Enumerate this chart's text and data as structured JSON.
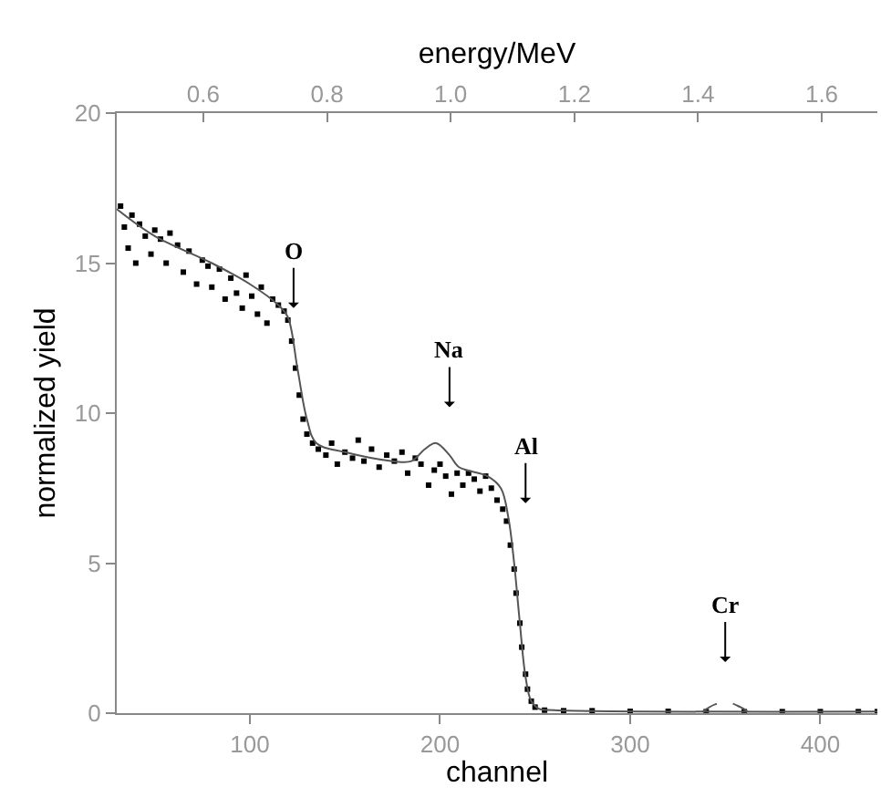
{
  "chart_data": {
    "type": "scatter",
    "xlabel": "channel",
    "ylabel": "normalized yield",
    "x2label": "energy/MeV",
    "xlim": [
      30,
      430
    ],
    "xticks": [
      100,
      200,
      300,
      400
    ],
    "ylim": [
      0,
      20
    ],
    "yticks": [
      0,
      5,
      10,
      15,
      20
    ],
    "x2lim": [
      0.46,
      1.69
    ],
    "x2ticks": [
      0.6,
      0.8,
      {
        "value": 1.0,
        "label": "1.0"
      },
      1.2,
      1.4,
      1.6
    ],
    "legend": false,
    "series": [
      {
        "marker": "square",
        "color": "#000000",
        "x": [
          32,
          34,
          36,
          38,
          40,
          42,
          45,
          48,
          50,
          53,
          56,
          58,
          62,
          65,
          68,
          72,
          75,
          78,
          80,
          84,
          87,
          90,
          93,
          96,
          98,
          101,
          104,
          106,
          109,
          112,
          115,
          118,
          120,
          122,
          124,
          126,
          128,
          130,
          133,
          136,
          140,
          143,
          146,
          150,
          154,
          157,
          160,
          164,
          168,
          172,
          176,
          180,
          183,
          187,
          190,
          194,
          197,
          200,
          203,
          206,
          209,
          212,
          215,
          218,
          221,
          224,
          227,
          230,
          233,
          235,
          237,
          239,
          240,
          242,
          243,
          245,
          246,
          248,
          250,
          255,
          265,
          280,
          300,
          320,
          340,
          360,
          380,
          400,
          420,
          430
        ],
        "values": [
          16.9,
          16.2,
          15.5,
          16.6,
          15.0,
          16.3,
          15.9,
          15.3,
          16.1,
          15.8,
          15.0,
          16.0,
          15.6,
          14.7,
          15.4,
          14.3,
          15.1,
          14.9,
          14.2,
          14.8,
          13.8,
          14.5,
          14.0,
          13.5,
          14.6,
          13.9,
          13.3,
          14.2,
          13.0,
          13.8,
          13.6,
          13.4,
          13.1,
          12.4,
          11.5,
          10.6,
          9.8,
          9.3,
          9.0,
          8.8,
          8.6,
          9.0,
          8.3,
          8.7,
          8.5,
          9.1,
          8.4,
          8.8,
          8.2,
          8.6,
          8.4,
          8.7,
          8.0,
          8.5,
          8.3,
          7.6,
          8.1,
          8.3,
          7.9,
          7.3,
          8.0,
          7.6,
          8.0,
          7.8,
          7.4,
          7.9,
          7.5,
          7.1,
          6.8,
          6.4,
          5.6,
          4.8,
          4.0,
          3.0,
          2.2,
          1.3,
          0.8,
          0.4,
          0.2,
          0.1,
          0.08,
          0.08,
          0.06,
          0.06,
          0.05,
          0.05,
          0.05,
          0.05,
          0.05,
          0.05
        ]
      },
      {
        "type": "line",
        "line_style": "solid",
        "color": "#555555",
        "x": [
          30,
          50,
          80,
          100,
          115,
          120,
          125,
          130,
          135,
          150,
          175,
          185,
          192,
          198,
          205,
          210,
          225,
          232,
          236,
          239,
          242,
          245,
          248,
          252,
          260,
          430
        ],
        "values": [
          16.8,
          15.9,
          15.0,
          14.3,
          13.6,
          13.2,
          11.5,
          9.8,
          9.0,
          8.7,
          8.4,
          8.4,
          8.8,
          9.0,
          8.6,
          8.2,
          7.9,
          7.5,
          6.5,
          5.0,
          3.0,
          1.2,
          0.4,
          0.15,
          0.1,
          0.05
        ]
      },
      {
        "type": "line",
        "line_style": "dashed",
        "color": "#555555",
        "x": [
          338,
          345,
          352,
          358,
          362
        ],
        "values": [
          0.05,
          0.3,
          0.35,
          0.2,
          0.05
        ]
      }
    ],
    "annotations": [
      {
        "text": "O",
        "x": 123,
        "y": 13.5
      },
      {
        "text": "Na",
        "x": 205,
        "y": 10.2
      },
      {
        "text": "Al",
        "x": 245,
        "y": 7.0
      },
      {
        "text": "Cr",
        "x": 350,
        "y": 1.7
      }
    ]
  }
}
